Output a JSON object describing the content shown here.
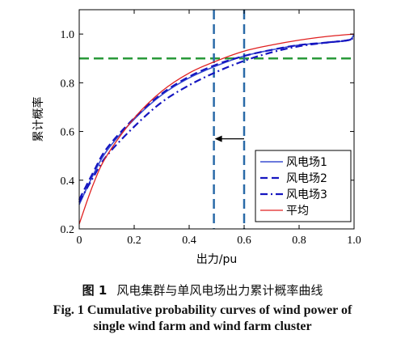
{
  "chart_data": {
    "type": "line",
    "xlabel": "出力/pu",
    "ylabel": "累计概率",
    "xlim": [
      0,
      1
    ],
    "ylim": [
      0.2,
      1.1
    ],
    "xticks": [
      "0",
      "0.2",
      "0.4",
      "0.6",
      "0.8",
      "1.0"
    ],
    "yticks": [
      "0.2",
      "0.4",
      "0.6",
      "0.8",
      "1.0"
    ],
    "legend_position": "bottom-right",
    "series": [
      {
        "name": "风电场1",
        "color": "#3a4fd0",
        "style": "solid",
        "x": [
          0,
          0.05,
          0.1,
          0.2,
          0.3,
          0.4,
          0.5,
          0.6,
          0.7,
          0.8,
          0.9,
          0.98,
          1.0
        ],
        "y": [
          0.3,
          0.42,
          0.52,
          0.65,
          0.75,
          0.82,
          0.87,
          0.91,
          0.935,
          0.955,
          0.965,
          0.975,
          1.0
        ]
      },
      {
        "name": "风电场2",
        "color": "#1515c0",
        "style": "dashed",
        "x": [
          0,
          0.05,
          0.1,
          0.2,
          0.3,
          0.4,
          0.5,
          0.6,
          0.7,
          0.8,
          0.9,
          0.98,
          1.0
        ],
        "y": [
          0.32,
          0.43,
          0.53,
          0.655,
          0.755,
          0.825,
          0.875,
          0.91,
          0.935,
          0.955,
          0.965,
          0.975,
          0.985
        ]
      },
      {
        "name": "风电场3",
        "color": "#1515c0",
        "style": "dashdot",
        "x": [
          0,
          0.05,
          0.1,
          0.2,
          0.3,
          0.4,
          0.5,
          0.6,
          0.7,
          0.8,
          0.9,
          0.98,
          1.0
        ],
        "y": [
          0.31,
          0.41,
          0.5,
          0.62,
          0.72,
          0.79,
          0.845,
          0.89,
          0.925,
          0.95,
          0.965,
          0.975,
          0.99
        ]
      },
      {
        "name": "平均",
        "color": "#e02020",
        "style": "solid",
        "x": [
          0,
          0.05,
          0.1,
          0.2,
          0.3,
          0.4,
          0.5,
          0.6,
          0.7,
          0.8,
          0.9,
          1.0
        ],
        "y": [
          0.22,
          0.38,
          0.5,
          0.655,
          0.765,
          0.84,
          0.89,
          0.93,
          0.955,
          0.975,
          0.99,
          1.0
        ]
      }
    ],
    "reference_lines": {
      "horizontal_y": 0.9,
      "horizontal_color": "#2a9a3a",
      "vertical_x": [
        0.49,
        0.6
      ],
      "vertical_color": "#2a6aa8",
      "arrow": {
        "from_x": 0.6,
        "to_x": 0.49,
        "y": 0.57
      }
    }
  },
  "caption": {
    "cn_fig": "图 1",
    "cn_text": "风电集群与单风电场出力累计概率曲线",
    "en_line1": "Fig. 1   Cumulative probability curves of wind power of",
    "en_line2": "single wind farm and wind farm cluster"
  }
}
